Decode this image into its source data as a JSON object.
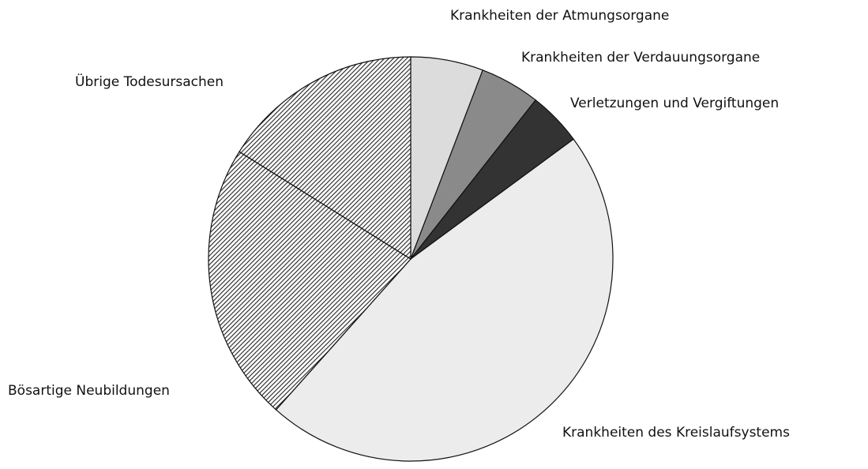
{
  "chart_data": {
    "type": "pie",
    "categories": [
      "Krankheiten der Atmungsorgane",
      "Krankheiten der Verdauungsorgane",
      "Verletzungen und Vergiftungen",
      "Krankheiten des Kreislaufsystems",
      "Bösartige Neubildungen",
      "Übrige Todesursachen"
    ],
    "values": [
      5.8,
      4.8,
      4.3,
      46.7,
      22.3,
      16.1
    ],
    "colors": [
      "#dcdcdc",
      "#8a8a8a",
      "#333333",
      "#ececec",
      "#5a5a5a",
      "#9a9a9a"
    ],
    "hatch": [
      false,
      false,
      false,
      false,
      true,
      true
    ]
  }
}
